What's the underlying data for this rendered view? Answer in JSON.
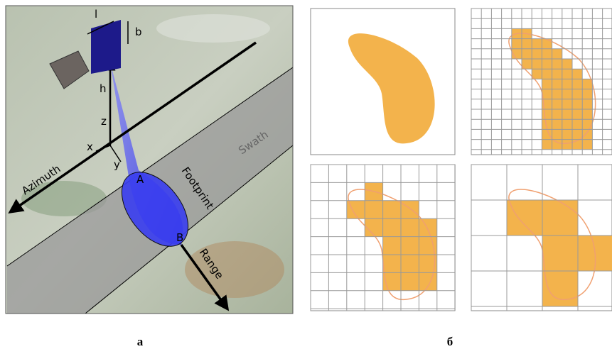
{
  "left_panel": {
    "labels": {
      "l": "l",
      "b": "b",
      "h": "h",
      "z": "z",
      "x": "x",
      "y": "y",
      "a_point": "A",
      "b_point": "B",
      "azimuth": "Azimuth",
      "footprint": "Footprint",
      "swath": "Swath",
      "range": "Range"
    },
    "caption": "а"
  },
  "right_panel": {
    "caption": "б"
  }
}
